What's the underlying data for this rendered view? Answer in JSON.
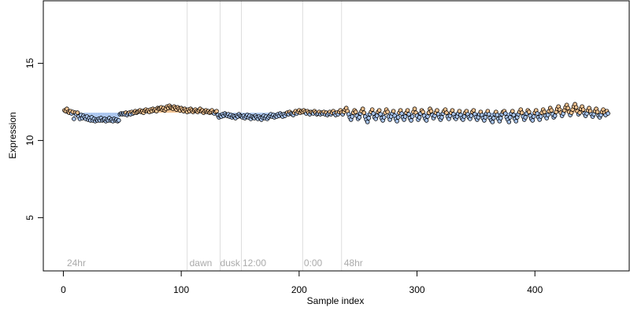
{
  "chart_data": {
    "type": "scatter",
    "title": "",
    "xlabel": "Sample index",
    "ylabel": "Expression",
    "xlim": [
      -17,
      480
    ],
    "ylim": [
      1.55,
      19.05
    ],
    "x_ticks": [
      0,
      100,
      200,
      300,
      400
    ],
    "x_tick_labels": [
      "0",
      "100",
      "200",
      "300",
      "400"
    ],
    "y_ticks": [
      5,
      10,
      15
    ],
    "y_tick_labels": [
      "5",
      "10",
      "15"
    ],
    "grid": false,
    "baseline": 11.8,
    "n_points": 462,
    "colors": {
      "high": "#f3c391",
      "low": "#a8c4ee",
      "point_fill": "#f3c391",
      "point_stroke": "#000000",
      "vline": "#dddddd",
      "annotation": "#aaaaaa",
      "axis": "#000000"
    },
    "phase_lines": [
      {
        "x": 105,
        "label": "dawn"
      },
      {
        "x": 133,
        "label": "dusk"
      },
      {
        "x": 151,
        "label": "12:00"
      },
      {
        "x": 203,
        "label": "0:00"
      },
      {
        "x": 236,
        "label": "48hr"
      }
    ],
    "annotations": [
      {
        "x": 3,
        "label": "24hr"
      },
      {
        "x": 107,
        "label": "dawn"
      },
      {
        "x": 133,
        "label": "dusk"
      },
      {
        "x": 152,
        "label": "12:00"
      },
      {
        "x": 204,
        "label": "0:00"
      },
      {
        "x": 238,
        "label": "48hr"
      }
    ],
    "series": [
      {
        "values_by_segment": [
          {
            "x_start": 1,
            "x_end": 10,
            "values": [
              11.95,
              11.9,
              12.05,
              11.85,
              11.8,
              11.9,
              11.75,
              11.85,
              11.4,
              11.8
            ]
          },
          {
            "x_start": 11,
            "x_end": 30,
            "values": [
              11.7,
              11.8,
              11.55,
              11.4,
              11.65,
              11.45,
              11.6,
              11.5,
              11.4,
              11.55,
              11.35,
              11.45,
              11.3,
              11.5,
              11.3,
              11.4,
              11.25,
              11.35,
              11.3,
              11.4
            ]
          },
          {
            "x_start": 31,
            "x_end": 50,
            "values": [
              11.3,
              11.45,
              11.3,
              11.35,
              11.4,
              11.25,
              11.35,
              11.3,
              11.45,
              11.3,
              11.35,
              11.25,
              11.4,
              11.3,
              11.35,
              11.25,
              11.3,
              11.7,
              11.75,
              11.7
            ]
          },
          {
            "x_start": 51,
            "x_end": 90,
            "values": [
              11.75,
              11.7,
              11.8,
              11.65,
              11.75,
              11.8,
              11.7,
              11.85,
              11.75,
              11.8,
              11.9,
              11.8,
              11.85,
              11.9,
              11.95,
              11.85,
              11.9,
              11.8,
              11.95,
              12.0,
              11.9,
              11.95,
              11.85,
              12.0,
              11.9,
              12.05,
              11.95,
              12.0,
              11.9,
              12.1,
              12.05,
              12.1,
              12.15,
              12.0,
              12.1,
              11.95,
              12.05,
              12.2,
              12.1,
              12.25
            ]
          },
          {
            "x_start": 91,
            "x_end": 130,
            "values": [
              12.15,
              12.1,
              12.05,
              12.2,
              12.1,
              12.0,
              12.15,
              12.05,
              11.95,
              12.1,
              12.0,
              11.9,
              12.05,
              11.95,
              11.85,
              12.0,
              11.9,
              12.05,
              11.95,
              11.85,
              11.95,
              12.0,
              11.9,
              11.85,
              11.95,
              12.05,
              11.9,
              11.95,
              11.8,
              11.9,
              11.95,
              11.85,
              11.9,
              11.8,
              11.85,
              11.95,
              11.8,
              11.75,
              11.85,
              11.9
            ]
          },
          {
            "x_start": 131,
            "x_end": 180,
            "values": [
              11.65,
              11.5,
              11.6,
              11.55,
              11.7,
              11.6,
              11.75,
              11.65,
              11.6,
              11.7,
              11.55,
              11.65,
              11.5,
              11.6,
              11.55,
              11.45,
              11.6,
              11.55,
              11.7,
              11.6,
              11.55,
              11.5,
              11.6,
              11.45,
              11.55,
              11.65,
              11.5,
              11.6,
              11.4,
              11.55,
              11.5,
              11.45,
              11.6,
              11.5,
              11.4,
              11.55,
              11.45,
              11.35,
              11.5,
              11.6,
              11.45,
              11.55,
              11.4,
              11.5,
              11.6,
              11.7,
              11.55,
              11.65,
              11.5,
              11.6
            ]
          },
          {
            "x_start": 181,
            "x_end": 240,
            "values": [
              11.55,
              11.7,
              11.6,
              11.75,
              11.65,
              11.55,
              11.7,
              11.6,
              11.75,
              11.8,
              11.7,
              11.85,
              11.75,
              11.7,
              11.65,
              11.8,
              11.9,
              11.75,
              11.85,
              11.95,
              11.8,
              11.9,
              11.85,
              11.95,
              11.85,
              11.75,
              11.9,
              11.8,
              11.7,
              11.85,
              11.8,
              11.75,
              11.9,
              11.8,
              11.7,
              11.75,
              11.85,
              11.7,
              11.8,
              11.75,
              11.85,
              11.7,
              11.8,
              11.65,
              11.75,
              11.85,
              11.7,
              11.8,
              11.9,
              11.75,
              11.65,
              11.8,
              11.7,
              11.85,
              11.95,
              11.8,
              11.7,
              11.85,
              12.0,
              12.1
            ]
          },
          {
            "x_start": 241,
            "x_end": 300,
            "values": [
              11.9,
              11.7,
              11.5,
              11.35,
              11.55,
              11.8,
              11.95,
              11.85,
              11.6,
              11.4,
              11.5,
              11.75,
              11.9,
              12.05,
              11.8,
              11.55,
              11.35,
              11.2,
              11.45,
              11.7,
              11.85,
              12.0,
              11.75,
              11.5,
              11.4,
              11.6,
              11.85,
              11.95,
              11.7,
              11.45,
              11.3,
              11.5,
              11.8,
              12.0,
              11.85,
              11.55,
              11.35,
              11.55,
              11.75,
              11.9,
              11.6,
              11.4,
              11.25,
              11.5,
              11.8,
              11.95,
              11.75,
              11.5,
              11.35,
              11.55,
              11.8,
              11.95,
              11.7,
              11.45,
              11.3,
              11.55,
              11.85,
              12.05,
              11.8,
              11.6
            ]
          },
          {
            "x_start": 301,
            "x_end": 350,
            "values": [
              11.35,
              11.5,
              11.75,
              11.95,
              11.85,
              11.6,
              11.4,
              11.3,
              11.55,
              11.8,
              12.05,
              11.9,
              11.65,
              11.45,
              11.6,
              11.8,
              11.95,
              11.7,
              11.5,
              11.35,
              11.5,
              11.75,
              11.9,
              12.0,
              11.8,
              11.55,
              11.4,
              11.6,
              11.8,
              11.95,
              11.7,
              11.5,
              11.4,
              11.55,
              11.75,
              11.9,
              11.65,
              11.45,
              11.35,
              11.55,
              11.8,
              11.9,
              11.7,
              11.5,
              11.4,
              11.6,
              11.85,
              11.95,
              11.7,
              11.5
            ]
          },
          {
            "x_start": 351,
            "x_end": 400,
            "values": [
              11.35,
              11.5,
              11.7,
              11.85,
              11.65,
              11.45,
              11.3,
              11.5,
              11.75,
              11.9,
              11.7,
              11.45,
              11.3,
              11.2,
              11.45,
              11.7,
              11.85,
              11.65,
              11.4,
              11.25,
              11.45,
              11.7,
              11.85,
              11.9,
              11.75,
              11.5,
              11.35,
              11.2,
              11.5,
              11.75,
              11.9,
              11.65,
              11.4,
              11.25,
              11.5,
              11.7,
              11.85,
              12.0,
              11.8,
              11.55,
              11.35,
              11.5,
              11.75,
              11.95,
              11.85,
              11.6,
              11.4,
              11.3,
              11.55,
              11.8
            ]
          },
          {
            "x_start": 401,
            "x_end": 462,
            "values": [
              11.95,
              11.75,
              11.5,
              11.35,
              11.55,
              11.8,
              12.0,
              11.85,
              11.6,
              11.45,
              11.65,
              11.9,
              12.1,
              11.95,
              11.7,
              11.5,
              11.6,
              11.85,
              12.05,
              12.2,
              12.0,
              11.8,
              11.6,
              11.75,
              11.95,
              12.15,
              12.3,
              12.1,
              11.85,
              11.65,
              11.8,
              12.0,
              12.2,
              12.35,
              12.15,
              11.9,
              11.7,
              11.8,
              12.05,
              12.2,
              12.0,
              11.75,
              11.6,
              11.75,
              11.95,
              12.1,
              11.9,
              11.7,
              11.55,
              11.7,
              11.9,
              12.05,
              11.85,
              11.6,
              11.5,
              11.65,
              11.85,
              12.0,
              11.8,
              11.65,
              11.9,
              11.75
            ]
          }
        ]
      }
    ]
  }
}
